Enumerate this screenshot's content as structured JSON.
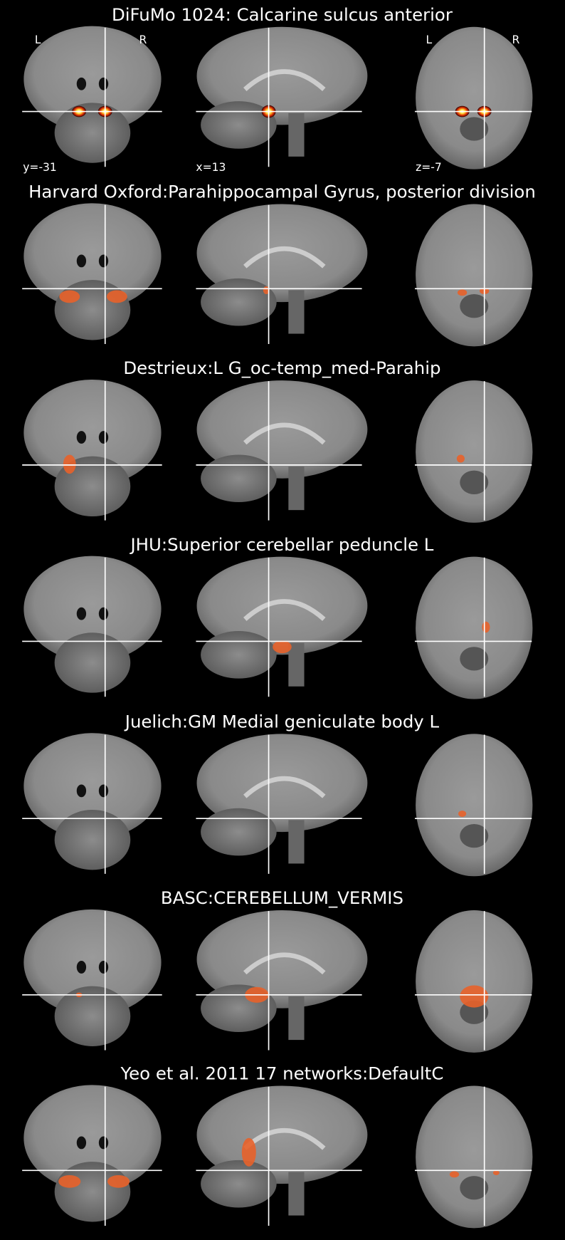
{
  "panels": [
    {
      "title": "DiFuMo 1024: Calcarine sulcus anterior",
      "orientation_labels": [
        "L",
        "R",
        "L",
        "R"
      ],
      "cut_coords": [
        "y=-31",
        "x=13",
        "z=-7"
      ]
    },
    {
      "title": "Harvard Oxford:Parahippocampal Gyrus, posterior division"
    },
    {
      "title": "Destrieux:L G_oc-temp_med-Parahip"
    },
    {
      "title": "JHU:Superior cerebellar peduncle L"
    },
    {
      "title": "Juelich:GM Medial geniculate body L"
    },
    {
      "title": "BASC:CEREBELLUM_VERMIS"
    },
    {
      "title": "Yeo et al. 2011 17 networks:DefaultC"
    }
  ]
}
